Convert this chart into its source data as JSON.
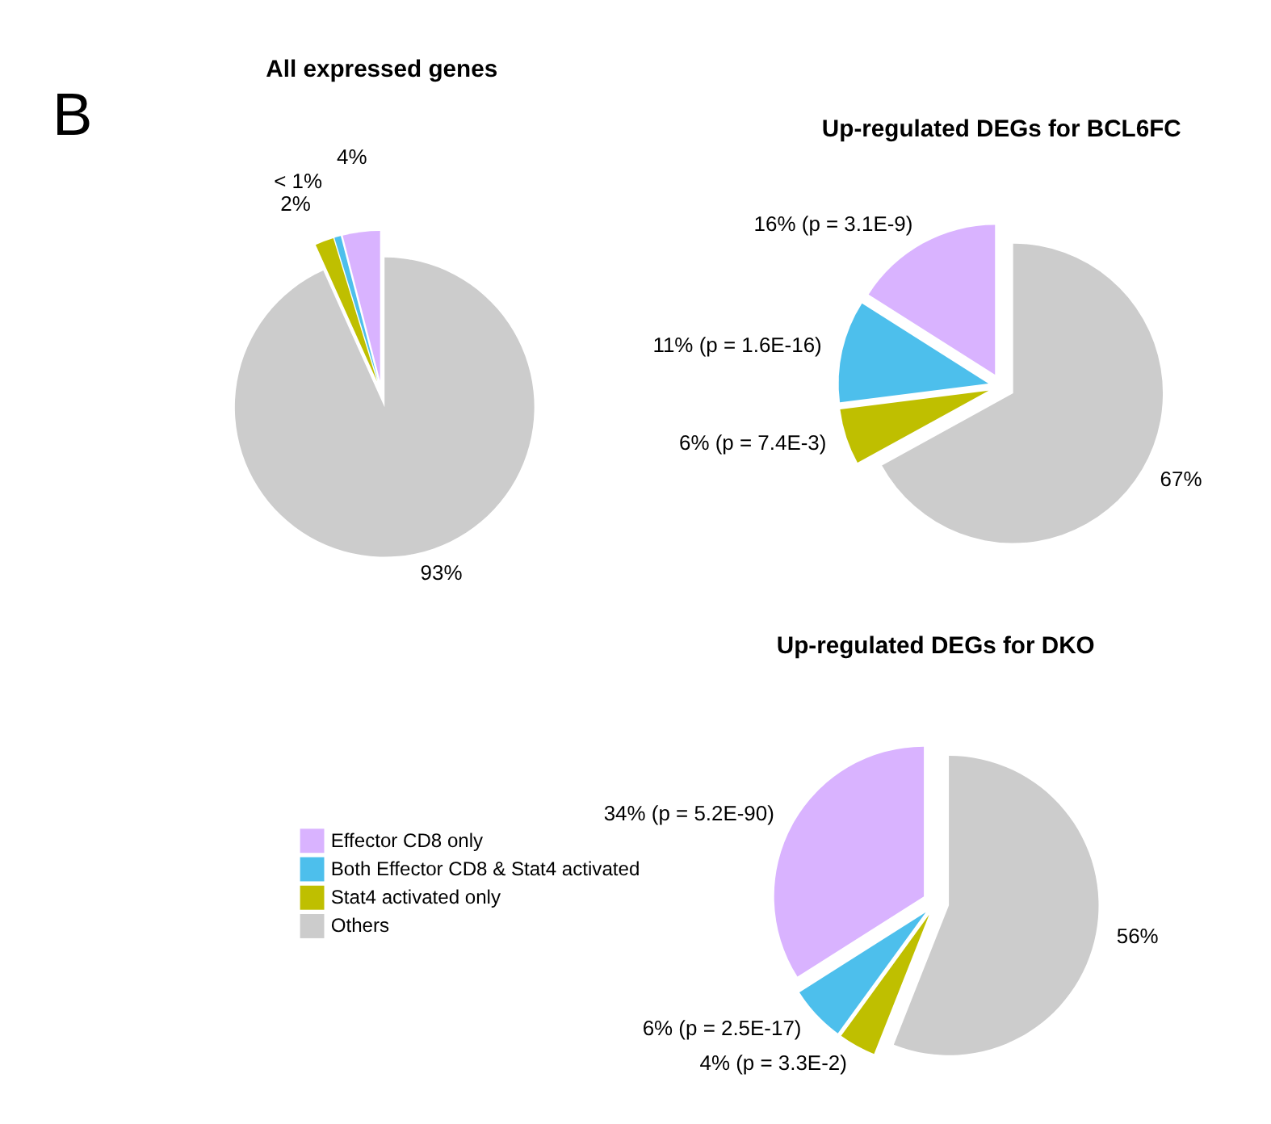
{
  "chart_data": [
    {
      "type": "pie",
      "title": "All expressed genes",
      "annotations": [
        "B"
      ],
      "categories": [
        null,
        null,
        null,
        null
      ],
      "values": [
        4,
        0.7,
        2,
        93
      ],
      "value_labels": [
        "4%",
        "< 1%",
        "2%",
        "93%"
      ],
      "colors": [
        "#d9b3ff",
        "#4dbfec",
        "#bfbf00",
        "#cccccc"
      ],
      "legend": false
    },
    {
      "type": "pie",
      "title": "Up-regulated DEGs for BCL6FC",
      "categories": [
        null,
        null,
        null,
        null
      ],
      "values": [
        16,
        11,
        6,
        67
      ],
      "value_labels": [
        "16% (p = 3.1E-9)",
        "11% (p = 1.6E-16)",
        "6% (p = 7.4E-3)",
        "67%"
      ],
      "colors": [
        "#d9b3ff",
        "#4dbfec",
        "#bfbf00",
        "#cccccc"
      ],
      "legend": false
    },
    {
      "type": "pie",
      "title": "Up-regulated DEGs for DKO",
      "categories": [
        "Effector CD8 only",
        "Both Effector CD8 & Stat4 activated",
        "Stat4 activated only",
        "Others"
      ],
      "values": [
        34,
        6,
        4,
        56
      ],
      "value_labels": [
        "34% (p = 5.2E-90)",
        "6% (p = 2.5E-17)",
        "4% (p = 3.3E-2)",
        "56%"
      ],
      "colors": [
        "#d9b3ff",
        "#4dbfec",
        "#bfbf00",
        "#cccccc"
      ],
      "legend": "left"
    }
  ]
}
